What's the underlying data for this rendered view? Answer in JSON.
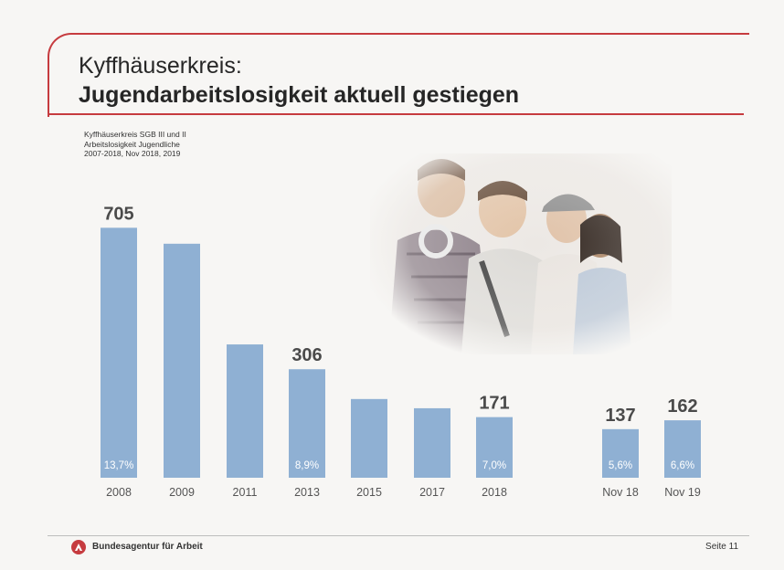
{
  "header": {
    "title_line1": "Kyffhäuserkreis:",
    "title_line2": "Jugendarbeitslosigkeit aktuell gestiegen"
  },
  "subtitle": {
    "line1": "Kyffhäuserkreis SGB III und II",
    "line2": "Arbeitslosigkeit Jugendliche",
    "line3": "2007-2018, Nov 2018, 2019"
  },
  "chart_data": {
    "type": "bar",
    "categories": [
      "2008",
      "2009",
      "2011",
      "2013",
      "2015",
      "2017",
      "2018",
      "Nov 18",
      "Nov 19"
    ],
    "values": [
      705,
      660,
      376,
      306,
      222,
      196,
      171,
      137,
      162
    ],
    "value_labels": [
      "705",
      "",
      "",
      "306",
      "",
      "",
      "171",
      "137",
      "162"
    ],
    "rate_labels": [
      "13,7%",
      "",
      "",
      "8,9%",
      "",
      "",
      "7,0%",
      "5,6%",
      "6,6%"
    ],
    "bar_color": "#8fb0d3",
    "ylim": [
      0,
      760
    ],
    "grid": false,
    "legend": "none"
  },
  "footer": {
    "brand": "Bundesagentur für Arbeit",
    "page": "Seite 11"
  },
  "colors": {
    "accent": "#c63b3f",
    "bar": "#8fb0d3",
    "label": "#4a4a4a",
    "rate_label": "#ffffff",
    "tick_label": "#555555"
  }
}
